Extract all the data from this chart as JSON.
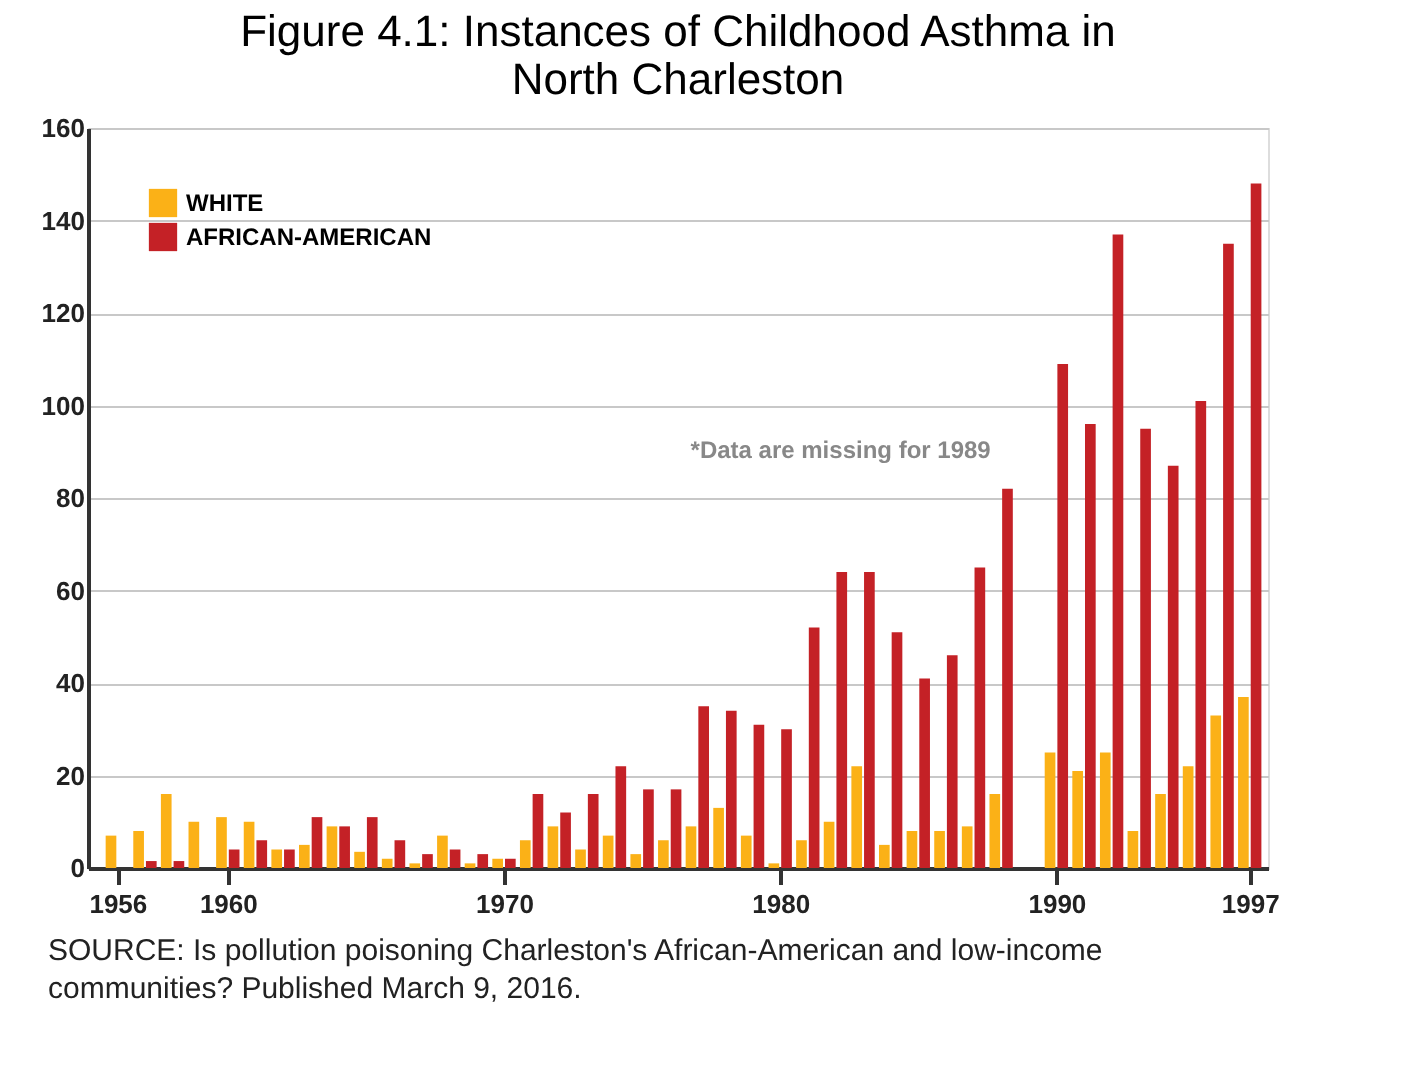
{
  "chart_data": {
    "type": "bar",
    "title": "Figure 4.1: Instances of Childhood Asthma in North Charleston",
    "x": [
      1956,
      1957,
      1958,
      1959,
      1960,
      1961,
      1962,
      1963,
      1964,
      1965,
      1966,
      1967,
      1968,
      1969,
      1970,
      1971,
      1972,
      1973,
      1974,
      1975,
      1976,
      1977,
      1978,
      1979,
      1980,
      1981,
      1982,
      1983,
      1984,
      1985,
      1986,
      1987,
      1988,
      1989,
      1990,
      1991,
      1992,
      1993,
      1994,
      1995,
      1996,
      1997
    ],
    "series": [
      {
        "name": "WHITE",
        "color": "#fbb117",
        "values": [
          7,
          8,
          16,
          10,
          11,
          10,
          4,
          5,
          9,
          3.5,
          2,
          1,
          7,
          1,
          2,
          6,
          9,
          4,
          7,
          3,
          6,
          9,
          13,
          7,
          1,
          6,
          10,
          22,
          5,
          8,
          8,
          9,
          16,
          null,
          25,
          21,
          25,
          8,
          16,
          22,
          33,
          37
        ]
      },
      {
        "name": "AFRICAN-AMERICAN",
        "color": "#c42126",
        "values": [
          null,
          1.5,
          1.5,
          null,
          4,
          6,
          4,
          11,
          9,
          11,
          6,
          3,
          4,
          3,
          2,
          16,
          12,
          16,
          22,
          17,
          17,
          35,
          34,
          31,
          30,
          52,
          64,
          64,
          51,
          41,
          46,
          65,
          82,
          null,
          109,
          96,
          137,
          95,
          87,
          101,
          135,
          148
        ]
      }
    ],
    "xlim": [
      1955.3,
      1997.3
    ],
    "xticks": [
      1956,
      1960,
      1970,
      1980,
      1990,
      1997
    ],
    "ylim": [
      0,
      160
    ],
    "yticks": [
      0,
      20,
      40,
      60,
      80,
      100,
      120,
      140,
      160
    ],
    "grid": "y",
    "legend": "top left",
    "annotations": [
      "*Data are missing for 1989",
      "SOURCE: Is pollution poisoning Charleston's African-American and low-income communities? Published March 9, 2016."
    ]
  }
}
